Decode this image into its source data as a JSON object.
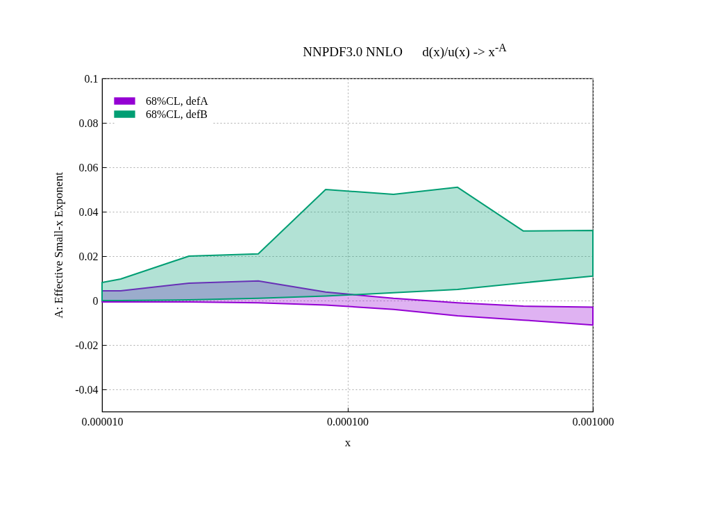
{
  "chart_data": {
    "type": "line",
    "title": "NNPDF3.0 NNLO      d(x)/u(x) -> x$^{-A}$",
    "xlabel": "x",
    "ylabel": "A: Effective Small-x Exponent",
    "x": [
      1e-05,
      1.19e-05,
      2.26e-05,
      4.33e-05,
      8.15e-05,
      0.000154,
      0.000281,
      0.000521,
      0.001
    ],
    "series": [
      {
        "name": "68%CL, defA",
        "color": "#9400d3",
        "values": [
          null,
          null,
          null,
          null,
          null,
          null,
          null,
          null,
          null
        ],
        "upper": [
          0.0044,
          0.0044,
          0.0078,
          0.0088,
          0.0038,
          0.001,
          -0.001,
          -0.0025,
          -0.003
        ],
        "lower": [
          -0.0006,
          -0.0006,
          -0.0006,
          -0.001,
          -0.002,
          -0.004,
          -0.0069,
          -0.0088,
          -0.011
        ]
      },
      {
        "name": "68%CL, defB",
        "color": "#009e73",
        "values": [
          null,
          null,
          null,
          null,
          null,
          null,
          null,
          null,
          null
        ],
        "upper": [
          0.0081,
          0.0097,
          0.02,
          0.021,
          0.05,
          0.0478,
          0.051,
          0.0313,
          0.0316
        ],
        "lower": [
          0,
          0,
          0.0003,
          0.001,
          0.002,
          0.0035,
          0.005,
          0.008,
          0.011
        ]
      }
    ],
    "log": "x",
    "xlim": [
      1e-05,
      0.001
    ],
    "xticks": [
      {
        "value": 1e-05,
        "label": "0.000010"
      },
      {
        "value": 0.0001,
        "label": "0.000100"
      },
      {
        "value": 0.001,
        "label": "0.001000"
      }
    ],
    "ylim": [
      -0.05,
      0.1
    ],
    "yticks": [
      -0.04,
      -0.02,
      0,
      0.02,
      0.04,
      0.06,
      0.08,
      0.1
    ],
    "grid": true,
    "legend": "top left"
  }
}
